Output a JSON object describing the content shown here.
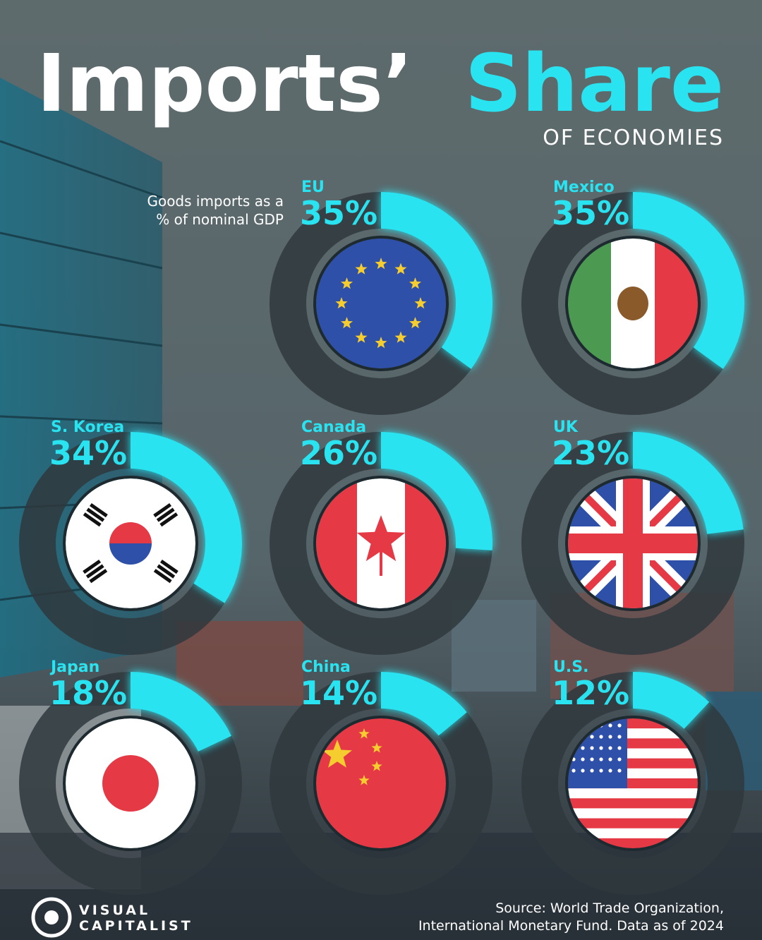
{
  "chart_data": {
    "type": "donut",
    "title": "Imports’",
    "title_highlight": "Share",
    "subtitle": "OF ECONOMIES",
    "note": [
      "Goods imports as a",
      "% of nominal GDP"
    ],
    "categories": [
      "EU",
      "Mexico",
      "S. Korea",
      "Canada",
      "UK",
      "Japan",
      "China",
      "U.S."
    ],
    "values": [
      35,
      35,
      34,
      26,
      23,
      18,
      14,
      12
    ],
    "value_labels": [
      "35%",
      "35%",
      "34%",
      "26%",
      "23%",
      "18%",
      "14%",
      "12%"
    ],
    "color": "#29e3f0",
    "source": [
      "Source: World Trade Organization,",
      "International Monetary Fund. Data as of 2024"
    ],
    "logo": [
      "VISUAL",
      "CAPITALIST"
    ]
  }
}
